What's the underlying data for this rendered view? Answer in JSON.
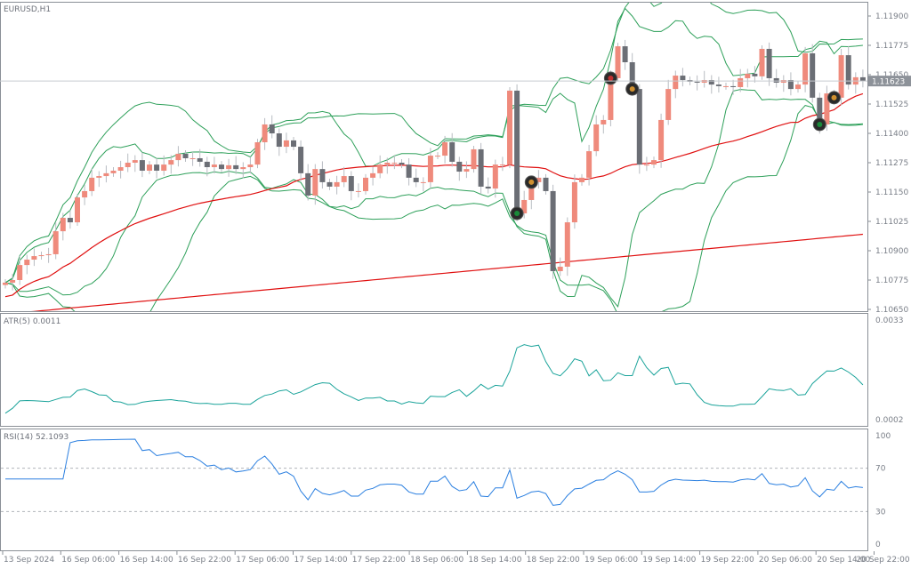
{
  "chart_data": {
    "type": "candlestick",
    "symbol_label": "EURUSD,H1",
    "atr_label": "ATR(5) 0.0011",
    "rsi_label": "RSI(14) 52.1093",
    "current_price": "1.11623",
    "price_ticks": [
      "1.11900",
      "1.11775",
      "1.11650",
      "1.11525",
      "1.11400",
      "1.11275",
      "1.11150",
      "1.11025",
      "1.10900",
      "1.10775",
      "1.10650"
    ],
    "price_range": [
      1.1065,
      1.119
    ],
    "atr_ticks": [
      "0.0033",
      "0.0002"
    ],
    "atr_range": [
      0.0002,
      0.0033
    ],
    "rsi_ticks": [
      "100",
      "70",
      "30",
      "0"
    ],
    "rsi_levels": [
      70,
      30
    ],
    "time_labels": [
      "13 Sep 2024",
      "16 Sep 06:00",
      "16 Sep 14:00",
      "16 Sep 22:00",
      "17 Sep 06:00",
      "17 Sep 14:00",
      "17 Sep 22:00",
      "18 Sep 06:00",
      "18 Sep 14:00",
      "18 Sep 22:00",
      "19 Sep 06:00",
      "19 Sep 14:00",
      "19 Sep 22:00",
      "20 Sep 06:00",
      "20 Sep 14:00",
      "20 Sep 22:00"
    ],
    "closes": [
      1.10764,
      1.10775,
      1.10839,
      1.10862,
      1.10877,
      1.10881,
      1.10885,
      1.10983,
      1.1104,
      1.11021,
      1.11127,
      1.11154,
      1.11211,
      1.11218,
      1.1123,
      1.11241,
      1.11256,
      1.11275,
      1.11286,
      1.11241,
      1.11267,
      1.11241,
      1.11267,
      1.11286,
      1.11313,
      1.11294,
      1.11294,
      1.11279,
      1.11256,
      1.11267,
      1.11248,
      1.11264,
      1.11248,
      1.11256,
      1.11267,
      1.11362,
      1.11438,
      1.114,
      1.11343,
      1.1137,
      1.11343,
      1.1123,
      1.11135,
      1.11248,
      1.11192,
      1.11173,
      1.11192,
      1.11218,
      1.11154,
      1.11154,
      1.11211,
      1.1123,
      1.11267,
      1.11275,
      1.11275,
      1.11267,
      1.11211,
      1.11192,
      1.11192,
      1.11305,
      1.11305,
      1.11362,
      1.11279,
      1.11237,
      1.11248,
      1.11332,
      1.11173,
      1.11165,
      1.11267,
      1.11267,
      1.11582,
      1.11059,
      1.11116,
      1.11192,
      1.11211,
      1.11154,
      1.10813,
      1.10832,
      1.11021,
      1.11192,
      1.11211,
      1.11324,
      1.11438,
      1.11457,
      1.11635,
      1.11771,
      1.11703,
      1.11589,
      1.11267,
      1.11267,
      1.11286,
      1.11457,
      1.11589,
      1.11646,
      1.11627,
      1.1162,
      1.11616,
      1.11627,
      1.11608,
      1.11601,
      1.11601,
      1.11597,
      1.11635,
      1.11654,
      1.11643,
      1.1176,
      1.11635,
      1.11616,
      1.11627,
      1.11589,
      1.11608,
      1.11741,
      1.11552,
      1.11438,
      1.1157,
      1.11552,
      1.11733,
      1.11608,
      1.11639,
      1.11623
    ],
    "colors": {
      "bull": "#ef8a7c",
      "bear": "#6b6e75",
      "bands": "#2ea05a",
      "ma": "#e01010",
      "atr": "#1aa39a",
      "rsi": "#2a7fe0",
      "grid": "#b0b4ba"
    }
  }
}
